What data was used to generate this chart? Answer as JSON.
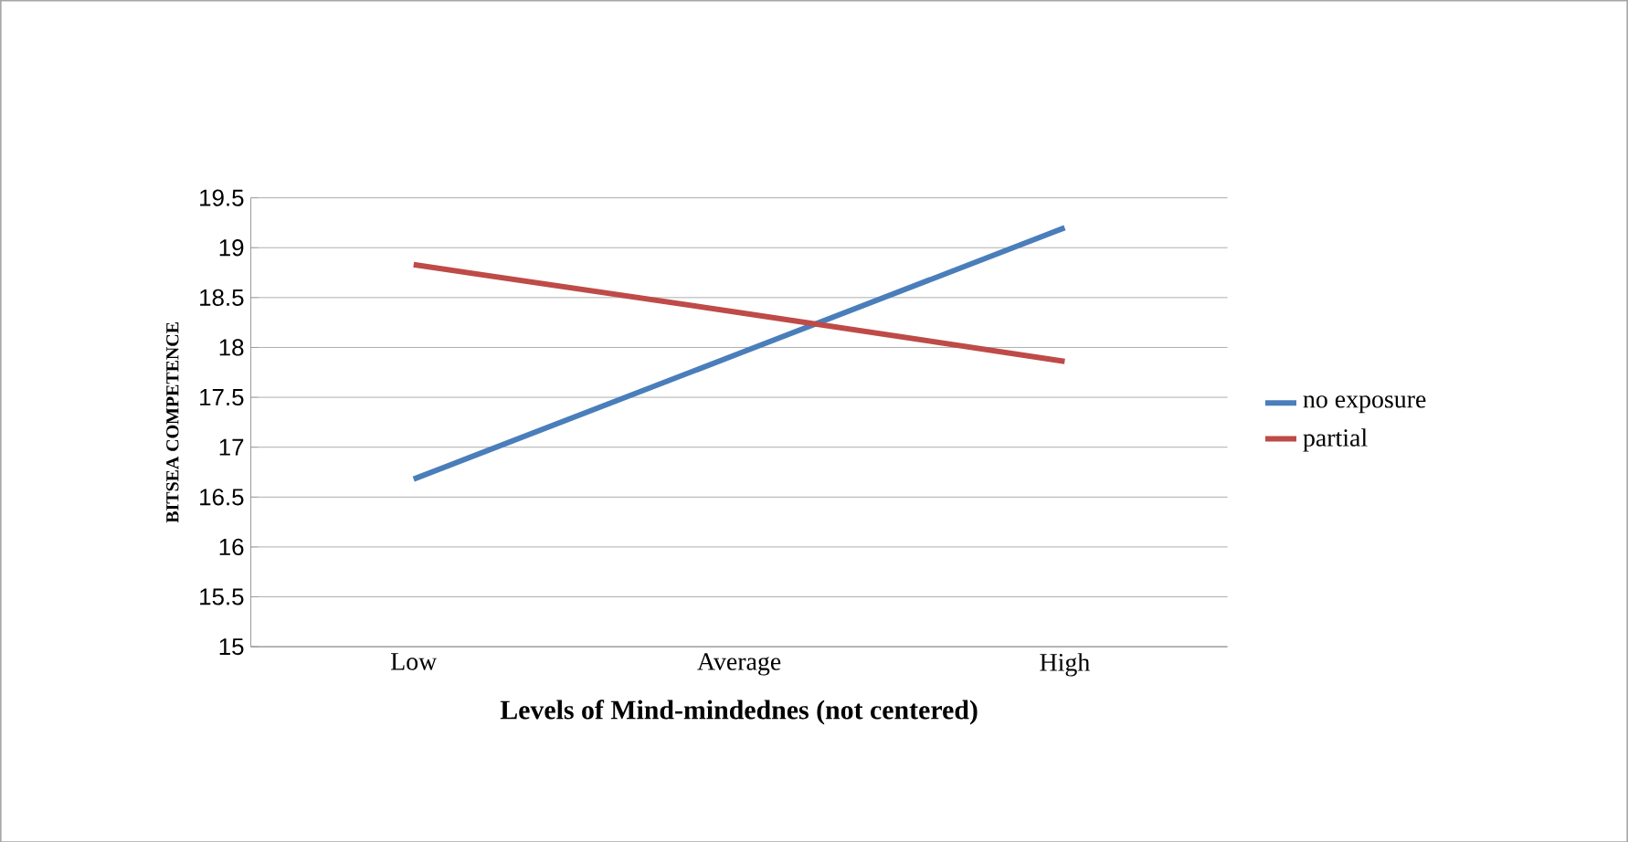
{
  "chart_data": {
    "type": "line",
    "xlabel": "Levels of Mind-mindednes (not centered)",
    "ylabel": "BITSEA COMPETENCE",
    "categories": [
      "Low",
      "Average",
      "High"
    ],
    "series": [
      {
        "name": "no exposure",
        "color": "#4a7ebb",
        "values": [
          16.68,
          17.94,
          19.2
        ]
      },
      {
        "name": "partial",
        "color": "#be4b48",
        "values": [
          18.83,
          18.35,
          17.86
        ]
      }
    ],
    "ylim": [
      15,
      19.5
    ],
    "yticks": [
      15,
      15.5,
      16,
      16.5,
      17,
      17.5,
      18,
      18.5,
      19,
      19.5
    ],
    "grid": "y",
    "legend": "right",
    "marker": "none",
    "line_style": "solid"
  }
}
